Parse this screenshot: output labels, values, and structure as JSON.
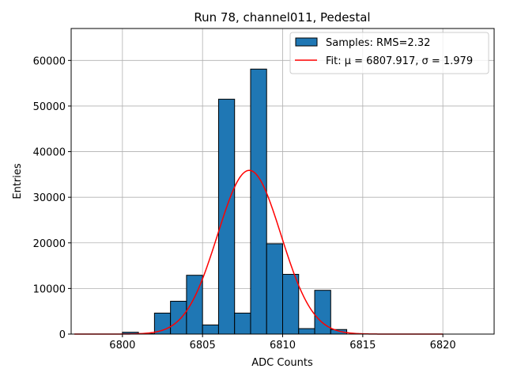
{
  "chart_data": {
    "type": "bar",
    "title": "Run 78, channel011, Pedestal",
    "xlabel": "ADC Counts",
    "ylabel": "Entries",
    "xlim": [
      6796.8,
      6823.2
    ],
    "ylim": [
      0,
      67000
    ],
    "xticks": [
      6800,
      6805,
      6810,
      6815,
      6820
    ],
    "yticks": [
      0,
      10000,
      20000,
      30000,
      40000,
      50000,
      60000
    ],
    "grid": true,
    "legend_position": "top-right",
    "bar_color": "#1f77b4",
    "fit_color": "#ff0000",
    "histogram": {
      "name": "Samples: RMS=2.32",
      "bin_edges": [
        6800,
        6801,
        6802,
        6803,
        6804,
        6805,
        6806,
        6807,
        6808,
        6809,
        6810,
        6811,
        6812,
        6813,
        6814
      ],
      "counts": [
        400,
        100,
        4600,
        7200,
        12900,
        2000,
        51500,
        4600,
        58100,
        19800,
        13100,
        1200,
        9600,
        1000
      ]
    },
    "fit": {
      "name": "Fit: μ = 6807.917, σ = 1.979",
      "mu": 6807.917,
      "sigma": 1.979,
      "amplitude": 35900,
      "x_range": [
        6797,
        6820
      ]
    }
  }
}
